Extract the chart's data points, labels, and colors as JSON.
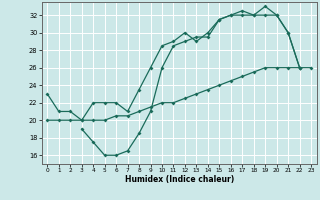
{
  "bg_color": "#cce8e8",
  "grid_color": "#ffffff",
  "line_color": "#1a6b5a",
  "xlabel": "Humidex (Indice chaleur)",
  "xlim": [
    -0.5,
    23.5
  ],
  "ylim": [
    15.0,
    33.5
  ],
  "yticks": [
    16,
    18,
    20,
    22,
    24,
    26,
    28,
    30,
    32
  ],
  "xticks": [
    0,
    1,
    2,
    3,
    4,
    5,
    6,
    7,
    8,
    9,
    10,
    11,
    12,
    13,
    14,
    15,
    16,
    17,
    18,
    19,
    20,
    21,
    22,
    23
  ],
  "line1_x": [
    0,
    1,
    2,
    3,
    4,
    5,
    6,
    7,
    8,
    9,
    10,
    11,
    12,
    13,
    14,
    15,
    16,
    17,
    18,
    19,
    20,
    21,
    22
  ],
  "line1_y": [
    23,
    21,
    21,
    20,
    22,
    22,
    22,
    21,
    23.5,
    26,
    28.5,
    29,
    30,
    29,
    30,
    31.5,
    32,
    32,
    32,
    33,
    32,
    30,
    26
  ],
  "line2_x": [
    0,
    1,
    2,
    3,
    4,
    5,
    6,
    7,
    8,
    9,
    10,
    11,
    12,
    13,
    14,
    15,
    16,
    17,
    18,
    19,
    20,
    21,
    22,
    23
  ],
  "line2_y": [
    20,
    20,
    20,
    20,
    20,
    20,
    20.5,
    20.5,
    21,
    21.5,
    22,
    22,
    22.5,
    23,
    23.5,
    24,
    24.5,
    25,
    25.5,
    26,
    26,
    26,
    26,
    26
  ],
  "line3_x": [
    3,
    4,
    5,
    6,
    7,
    8,
    9,
    10,
    11,
    12,
    13,
    14,
    15,
    16,
    17,
    18,
    19,
    20,
    21,
    22
  ],
  "line3_y": [
    19,
    17.5,
    16,
    16,
    16.5,
    18.5,
    21,
    26,
    28.5,
    29,
    29.5,
    29.5,
    31.5,
    32,
    32.5,
    32,
    32,
    32,
    30,
    26
  ]
}
